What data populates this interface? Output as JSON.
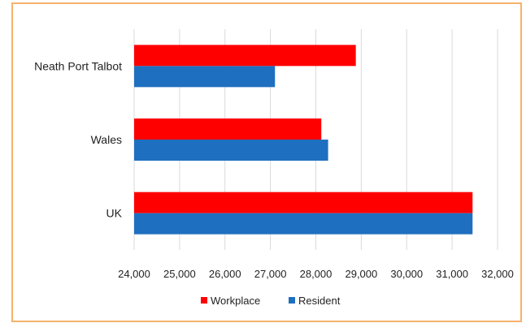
{
  "chart_data": {
    "type": "bar",
    "orientation": "horizontal",
    "categories": [
      "Neath Port Talbot",
      "Wales",
      "UK"
    ],
    "series": [
      {
        "name": "Workplace",
        "values": [
          28880,
          28120,
          31450
        ],
        "color": "#ff0000"
      },
      {
        "name": "Resident",
        "values": [
          27100,
          28270,
          31450
        ],
        "color": "#1f6fc0"
      }
    ],
    "xlim": [
      24000,
      32000
    ],
    "xticks": [
      "24,000",
      "25,000",
      "26,000",
      "27,000",
      "28,000",
      "29,000",
      "30,000",
      "31,000",
      "32,000"
    ],
    "grid": true,
    "legend_position": "bottom",
    "colors": {
      "border": "#f6b26b",
      "grid": "#d9d9d9"
    }
  }
}
